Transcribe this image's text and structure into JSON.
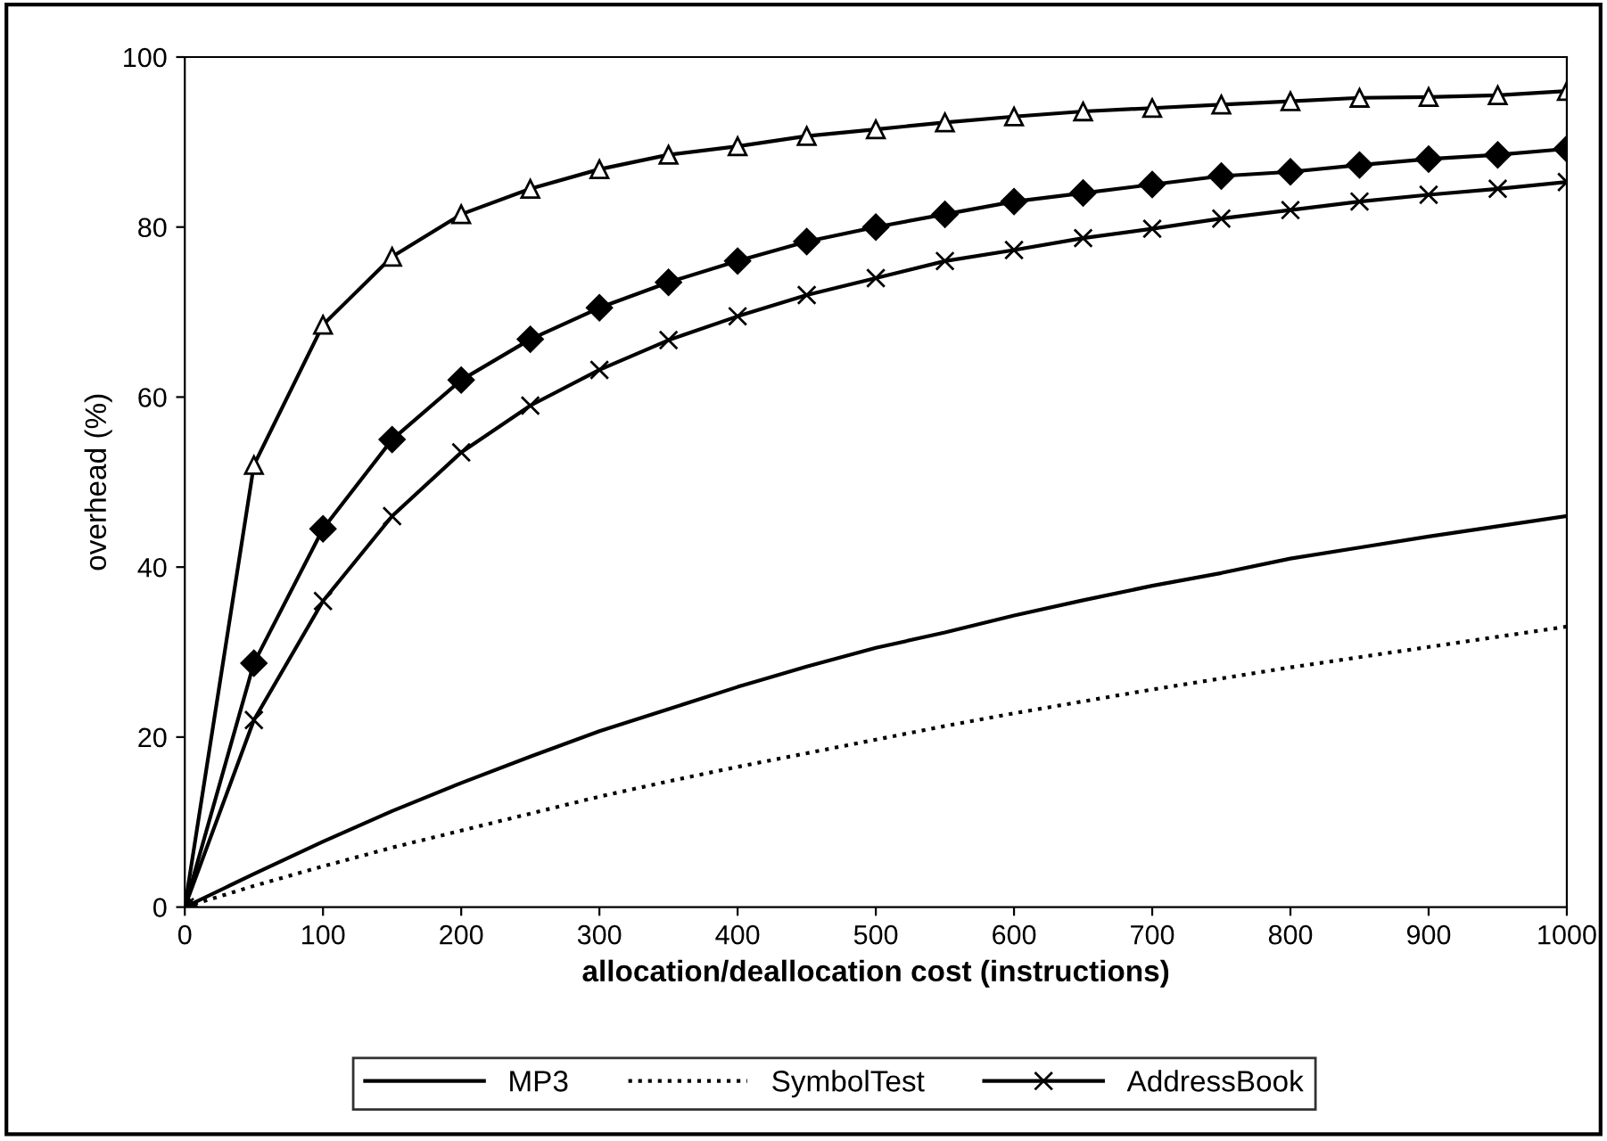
{
  "chart_data": {
    "type": "line",
    "xlabel": "allocation/deallocation cost (instructions)",
    "ylabel": "overhead (%)",
    "x": [
      0,
      50,
      100,
      150,
      200,
      250,
      300,
      350,
      400,
      450,
      500,
      550,
      600,
      650,
      700,
      750,
      800,
      850,
      900,
      950,
      1000
    ],
    "xlim": [
      0,
      1000
    ],
    "xticks": [
      0,
      100,
      200,
      300,
      400,
      500,
      600,
      700,
      800,
      900,
      1000
    ],
    "ylim": [
      0,
      100
    ],
    "yticks": [
      0,
      20,
      40,
      60,
      80,
      100
    ],
    "grid": false,
    "legend": "bottom",
    "series": [
      {
        "name": "MP3",
        "color": "#000000",
        "marker": "none",
        "line_style": "solid",
        "values": [
          0,
          3.9,
          7.7,
          11.3,
          14.6,
          17.7,
          20.7,
          23.3,
          25.9,
          28.3,
          30.5,
          32.3,
          34.3,
          36.1,
          37.8,
          39.3,
          41,
          42.3,
          43.6,
          44.8,
          46
        ]
      },
      {
        "name": "SymbolTest",
        "color": "#000000",
        "marker": "none",
        "line_style": "dotted",
        "values": [
          0,
          2.5,
          4.8,
          7,
          9,
          11,
          13,
          14.8,
          16.5,
          18.1,
          19.7,
          21.3,
          22.8,
          24.2,
          25.6,
          26.9,
          28.2,
          29.4,
          30.6,
          31.8,
          33
        ]
      },
      {
        "color": "#000000",
        "marker": "triangle",
        "line_style": "solid",
        "values": [
          0,
          52,
          68.5,
          76.5,
          81.5,
          84.5,
          86.8,
          88.5,
          89.5,
          90.7,
          91.5,
          92.3,
          93,
          93.6,
          94,
          94.4,
          94.8,
          95.2,
          95.3,
          95.5,
          96
        ]
      },
      {
        "name": "AddressBook",
        "color": "#000000",
        "marker": "cross",
        "line_style": "solid",
        "values": [
          0,
          22,
          36,
          46,
          53.5,
          59,
          63.2,
          66.7,
          69.5,
          72,
          74,
          76,
          77.3,
          78.7,
          79.8,
          81,
          82,
          83,
          83.8,
          84.5,
          85.3
        ]
      },
      {
        "color": "#000000",
        "marker": "diamond",
        "line_style": "solid",
        "values": [
          0,
          28.7,
          44.5,
          55,
          62,
          66.8,
          70.5,
          73.5,
          76,
          78.3,
          80,
          81.5,
          83,
          84,
          85,
          86,
          86.5,
          87.3,
          88,
          88.5,
          89.2
        ]
      }
    ]
  }
}
